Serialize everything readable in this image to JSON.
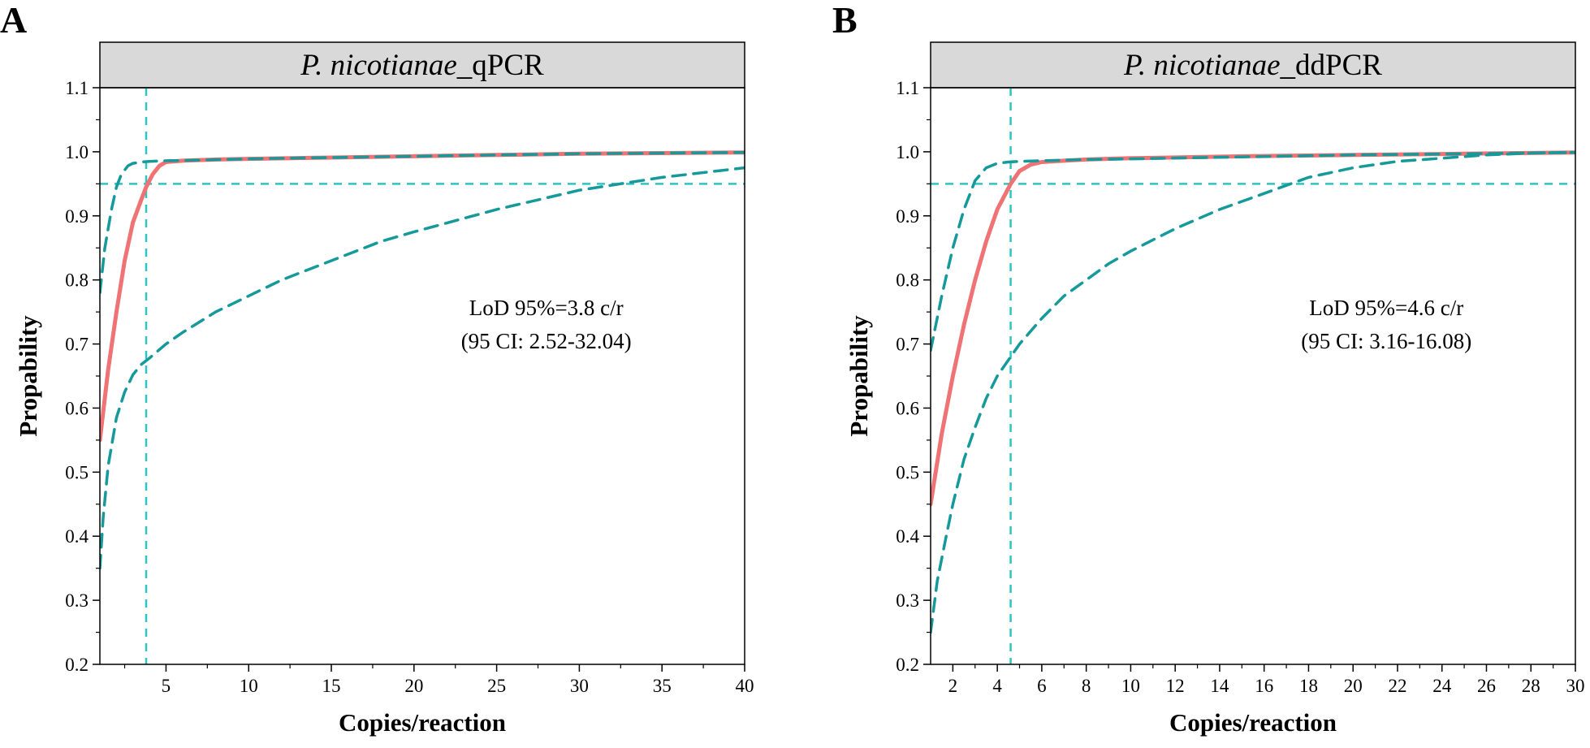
{
  "figure": {
    "style": {
      "curve_color": "#ef7374",
      "ci_color": "#16999a",
      "guide_color": "#2ec4c4",
      "header_fill": "#d9d9d9"
    }
  },
  "chart_data": [
    {
      "panel_label": "A",
      "type": "line",
      "title_italic": "P. nicotianae",
      "title_suffix": "_qPCR",
      "xlabel": "Copies/reaction",
      "ylabel": "Propability",
      "xlim": [
        1,
        40
      ],
      "ylim": [
        0.2,
        1.1
      ],
      "xticks": [
        5,
        10,
        15,
        20,
        25,
        30,
        35,
        40
      ],
      "xtick_labels": [
        "5",
        "10",
        "15",
        "20",
        "25",
        "30",
        "35",
        "40"
      ],
      "yticks": [
        0.2,
        0.3,
        0.4,
        0.5,
        0.6,
        0.7,
        0.8,
        0.9,
        1.0,
        1.1
      ],
      "ytick_labels": [
        "0.2",
        "0.3",
        "0.4",
        "0.5",
        "0.6",
        "0.7",
        "0.8",
        "0.9",
        "1.0",
        "1.1"
      ],
      "lod_value": 3.8,
      "prob_threshold": 0.95,
      "annotation_line1": "LoD 95%=3.8 c/r",
      "annotation_line2": "(95 CI: 2.52-32.04)",
      "annotation_at": [
        28,
        0.745
      ],
      "series": [
        {
          "name": "fit",
          "style": "solid",
          "x": [
            1,
            1.5,
            2,
            2.5,
            3,
            3.5,
            3.8,
            4.2,
            4.6,
            5,
            6,
            8,
            10,
            15,
            20,
            25,
            30,
            35,
            40
          ],
          "y": [
            0.55,
            0.66,
            0.75,
            0.83,
            0.89,
            0.925,
            0.945,
            0.965,
            0.978,
            0.984,
            0.986,
            0.988,
            0.989,
            0.991,
            0.993,
            0.995,
            0.997,
            0.998,
            0.999
          ]
        },
        {
          "name": "upper_ci",
          "style": "dashed",
          "x": [
            1,
            1.3,
            1.7,
            2,
            2.3,
            2.7,
            3,
            3.5,
            4,
            5,
            7,
            10,
            20,
            30,
            40
          ],
          "y": [
            0.78,
            0.85,
            0.91,
            0.945,
            0.965,
            0.978,
            0.982,
            0.984,
            0.985,
            0.986,
            0.987,
            0.989,
            0.993,
            0.997,
            0.999
          ]
        },
        {
          "name": "lower_ci",
          "style": "dashed",
          "x": [
            1,
            1.2,
            1.5,
            2,
            2.5,
            3,
            3.5,
            4,
            5,
            6,
            8,
            10,
            12,
            15,
            18,
            20,
            25,
            30,
            35,
            40
          ],
          "y": [
            0.35,
            0.43,
            0.51,
            0.585,
            0.625,
            0.652,
            0.668,
            0.678,
            0.7,
            0.718,
            0.75,
            0.775,
            0.8,
            0.83,
            0.86,
            0.875,
            0.91,
            0.94,
            0.96,
            0.975
          ]
        }
      ]
    },
    {
      "panel_label": "B",
      "type": "line",
      "title_italic": "P. nicotianae",
      "title_suffix": "_ddPCR",
      "xlabel": "Copies/reaction",
      "ylabel": "Propability",
      "xlim": [
        1,
        30
      ],
      "ylim": [
        0.2,
        1.1
      ],
      "xticks": [
        2,
        4,
        6,
        8,
        10,
        12,
        14,
        16,
        18,
        20,
        22,
        24,
        26,
        28,
        30
      ],
      "xtick_labels": [
        "2",
        "4",
        "6",
        "8",
        "10",
        "12",
        "14",
        "16",
        "18",
        "20",
        "22",
        "24",
        "26",
        "28",
        "30"
      ],
      "yticks": [
        0.2,
        0.3,
        0.4,
        0.5,
        0.6,
        0.7,
        0.8,
        0.9,
        1.0,
        1.1
      ],
      "ytick_labels": [
        "0.2",
        "0.3",
        "0.4",
        "0.5",
        "0.6",
        "0.7",
        "0.8",
        "0.9",
        "1.0",
        "1.1"
      ],
      "lod_value": 4.6,
      "prob_threshold": 0.95,
      "annotation_line1": "LoD 95%=4.6 c/r",
      "annotation_line2": "(95 CI: 3.16-16.08)",
      "annotation_at": [
        21.5,
        0.745
      ],
      "series": [
        {
          "name": "fit",
          "style": "solid",
          "x": [
            1,
            1.5,
            2,
            2.5,
            3,
            3.5,
            4,
            4.6,
            5,
            5.5,
            6,
            7,
            8,
            10,
            15,
            20,
            25,
            30
          ],
          "y": [
            0.45,
            0.56,
            0.65,
            0.73,
            0.8,
            0.86,
            0.91,
            0.95,
            0.97,
            0.98,
            0.984,
            0.986,
            0.988,
            0.99,
            0.993,
            0.995,
            0.997,
            0.999
          ]
        },
        {
          "name": "upper_ci",
          "style": "dashed",
          "x": [
            1,
            1.5,
            2,
            2.5,
            3,
            3.5,
            4,
            4.5,
            5,
            6,
            8,
            10,
            15,
            20,
            25,
            30
          ],
          "y": [
            0.69,
            0.775,
            0.85,
            0.91,
            0.955,
            0.975,
            0.982,
            0.984,
            0.985,
            0.986,
            0.988,
            0.989,
            0.992,
            0.995,
            0.997,
            0.999
          ]
        },
        {
          "name": "lower_ci",
          "style": "dashed",
          "x": [
            1,
            1.3,
            1.7,
            2,
            2.5,
            3,
            3.5,
            4,
            4.6,
            5,
            6,
            7,
            8,
            9,
            10,
            12,
            14,
            16,
            18,
            20,
            22,
            24,
            26,
            28,
            30
          ],
          "y": [
            0.25,
            0.33,
            0.4,
            0.45,
            0.52,
            0.57,
            0.615,
            0.65,
            0.68,
            0.7,
            0.74,
            0.775,
            0.8,
            0.825,
            0.845,
            0.88,
            0.91,
            0.935,
            0.96,
            0.975,
            0.985,
            0.99,
            0.995,
            0.998,
            0.999
          ]
        }
      ]
    }
  ]
}
